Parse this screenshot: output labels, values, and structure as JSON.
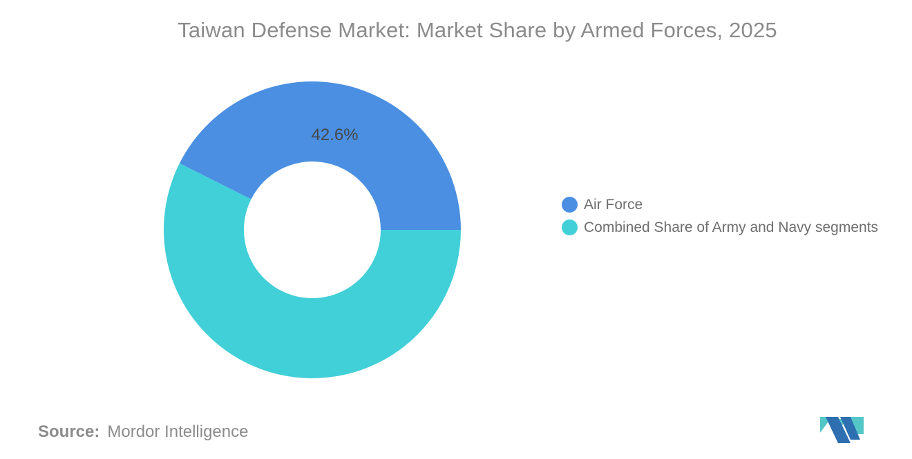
{
  "title": "Taiwan Defense Market: Market Share by Armed Forces, 2025",
  "chart_data": {
    "type": "pie",
    "subtype": "donut",
    "title": "Taiwan Defense Market: Market Share by Armed Forces, 2025",
    "categories": [
      "Air Force",
      "Combined Share of Army and Navy segments"
    ],
    "values": [
      42.6,
      57.4
    ],
    "unit": "%",
    "slices": [
      {
        "label": "Air Force",
        "value": 42.6,
        "color": "#4a8fe2",
        "data_label": "42.6%"
      },
      {
        "label": "Combined Share of Army and Navy segments",
        "value": 57.4,
        "color": "#41cfd8",
        "data_label": null
      }
    ],
    "inner_radius_ratio": 0.46,
    "start_angle_deg": 0,
    "direction": "counterclockwise",
    "legend_position": "right",
    "data_label_color": "#45484d"
  },
  "source": {
    "label": "Source:",
    "value": "Mordor Intelligence"
  },
  "logo": {
    "name": "mordor-intelligence-logo",
    "blue": "#2d6fb0",
    "teal": "#54c6c8"
  }
}
